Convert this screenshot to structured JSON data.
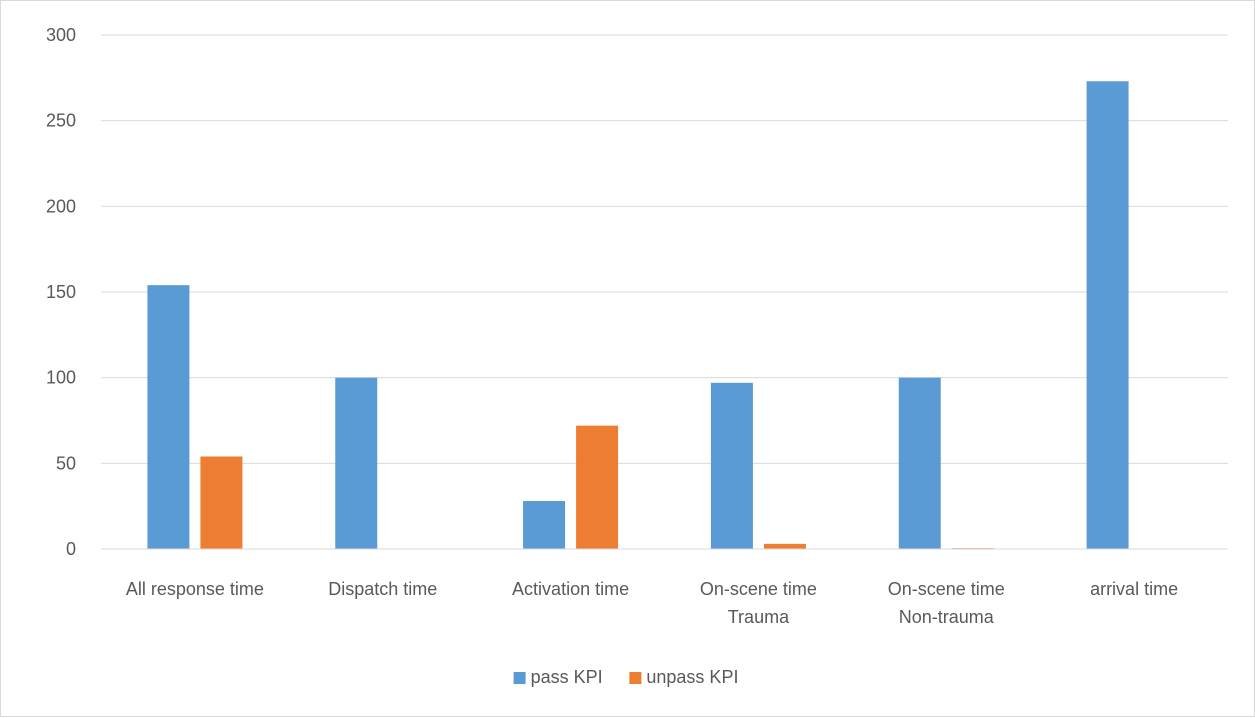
{
  "chart_data": {
    "type": "bar",
    "categories": [
      [
        "All response time"
      ],
      [
        "Dispatch time"
      ],
      [
        "Activation time"
      ],
      [
        "On-scene time",
        "Trauma"
      ],
      [
        "On-scene time",
        "Non-trauma"
      ],
      [
        "arrival time"
      ]
    ],
    "series": [
      {
        "name": "pass KPI",
        "color": "#5b9bd5",
        "values": [
          154,
          100,
          28,
          97,
          100,
          273
        ]
      },
      {
        "name": "unpass KPI",
        "color": "#ed7d31",
        "values": [
          54,
          0,
          72,
          3,
          0.5,
          0
        ]
      }
    ],
    "ylim": [
      0,
      300
    ],
    "yticks": [
      0,
      50,
      100,
      150,
      200,
      250,
      300
    ],
    "grid": true,
    "legend": "bottom"
  }
}
